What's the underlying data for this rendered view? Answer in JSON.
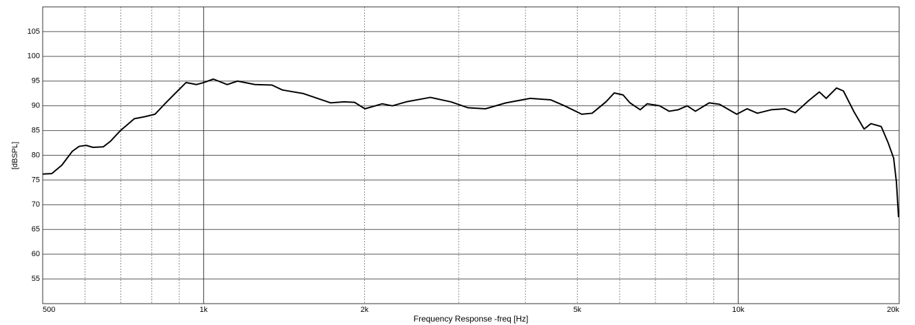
{
  "chart_data": {
    "type": "line",
    "xlabel": "Frequency Response -freq [Hz]",
    "ylabel": "[dBSPL]",
    "xlog": true,
    "grid": true,
    "xlim": [
      500,
      20000
    ],
    "ylim": [
      50,
      110
    ],
    "xticks": [
      {
        "value": 500,
        "label": "500"
      },
      {
        "value": 1000,
        "label": "1k"
      },
      {
        "value": 2000,
        "label": "2k"
      },
      {
        "value": 5000,
        "label": "5k"
      },
      {
        "value": 10000,
        "label": "10k"
      },
      {
        "value": 20000,
        "label": "20k"
      }
    ],
    "xminor": [
      600,
      700,
      800,
      900,
      3000,
      4000,
      6000,
      7000,
      8000,
      9000
    ],
    "yticks": [
      55,
      60,
      65,
      70,
      75,
      80,
      85,
      90,
      95,
      100,
      105
    ],
    "x": [
      500,
      520,
      543,
      568,
      585,
      603,
      621,
      649,
      669,
      699,
      742,
      776,
      811,
      848,
      894,
      927,
      969,
      1000,
      1043,
      1107,
      1157,
      1247,
      1342,
      1404,
      1534,
      1727,
      1832,
      1916,
      2003,
      2157,
      2255,
      2393,
      2655,
      2902,
      3125,
      3366,
      3679,
      4082,
      4460,
      4734,
      5097,
      5330,
      5656,
      5862,
      6090,
      6273,
      6558,
      6754,
      7127,
      7428,
      7719,
      8025,
      8317,
      8826,
      9227,
      9936,
      10387,
      10860,
      11522,
      12226,
      12781,
      13563,
      14181,
      14605,
      15270,
      15731,
      16444,
      17195,
      17713,
      18515,
      19077,
      19532,
      19768,
      19945
    ],
    "series": [
      {
        "name": "Frequency Response",
        "color": "#000000",
        "values": [
          76.2,
          76.3,
          78,
          80.8,
          81.8,
          82,
          81.6,
          81.7,
          82.8,
          85,
          87.4,
          87.8,
          88.3,
          90.5,
          93,
          94.7,
          94.3,
          94.7,
          95.4,
          94.3,
          95,
          94.3,
          94.2,
          93.2,
          92.5,
          90.6,
          90.8,
          90.7,
          89.4,
          90.4,
          90,
          90.8,
          91.7,
          90.8,
          89.6,
          89.4,
          90.6,
          91.5,
          91.2,
          90,
          88.3,
          88.5,
          90.8,
          92.6,
          92.2,
          90.6,
          89.2,
          90.4,
          90,
          88.9,
          89.2,
          90,
          88.9,
          90.6,
          90.3,
          88.3,
          89.4,
          88.5,
          89.2,
          89.4,
          88.6,
          91.1,
          92.8,
          91.5,
          93.6,
          93,
          88.9,
          85.3,
          86.4,
          85.8,
          82.5,
          79.4,
          74.5,
          67.5
        ]
      }
    ]
  }
}
